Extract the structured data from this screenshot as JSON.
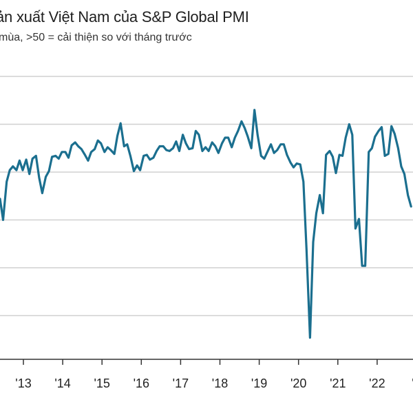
{
  "header": {
    "title": "ản xuất Việt Nam của S&P Global PMI",
    "subtitle": "mùa, >50 = cải thiện so với tháng trước"
  },
  "chart_data": {
    "type": "line",
    "title": "ản xuất Việt Nam của S&P Global PMI",
    "subtitle": "mùa, >50 = cải thiện so với tháng trước",
    "xlabel": "",
    "ylabel": "",
    "grid": true,
    "legend": "none",
    "line_color": "#1b6f8f",
    "grid_color": "#d0d0d0",
    "x_tick_labels": [
      "'13",
      "'14",
      "'15",
      "'16",
      "'17",
      "'18",
      "'19",
      "'20",
      "'21",
      "'22",
      "'2"
    ],
    "x_tick_years": [
      2013,
      2014,
      2015,
      2016,
      2017,
      2018,
      2019,
      2020,
      2021,
      2022,
      2023
    ],
    "xlim": [
      2012.45,
      2023.0
    ],
    "ylim": [
      30,
      60
    ],
    "y_gridlines": [
      35,
      40,
      45,
      50,
      55,
      60
    ],
    "series": [
      {
        "x": [
          2012.45,
          2012.53,
          2012.62,
          2012.7,
          2012.78,
          2012.87,
          2012.95,
          2013.03,
          2013.12,
          2013.2,
          2013.28,
          2013.37,
          2013.45,
          2013.53,
          2013.62,
          2013.7,
          2013.78,
          2013.87,
          2013.95,
          2014.03,
          2014.12,
          2014.2,
          2014.28,
          2014.37,
          2014.45,
          2014.53,
          2014.62,
          2014.7,
          2014.78,
          2014.87,
          2014.95,
          2015.03,
          2015.12,
          2015.2,
          2015.28,
          2015.37,
          2015.45,
          2015.53,
          2015.62,
          2015.7,
          2015.78,
          2015.87,
          2015.95,
          2016.03,
          2016.12,
          2016.2,
          2016.28,
          2016.37,
          2016.45,
          2016.53,
          2016.62,
          2016.7,
          2016.78,
          2016.87,
          2016.95,
          2017.03,
          2017.12,
          2017.2,
          2017.28,
          2017.37,
          2017.45,
          2017.53,
          2017.62,
          2017.7,
          2017.78,
          2017.87,
          2017.95,
          2018.03,
          2018.12,
          2018.2,
          2018.28,
          2018.37,
          2018.45,
          2018.53,
          2018.62,
          2018.7,
          2018.78,
          2018.87,
          2018.95,
          2019.03,
          2019.12,
          2019.2,
          2019.28,
          2019.37,
          2019.45,
          2019.53,
          2019.62,
          2019.7,
          2019.78,
          2019.87,
          2019.95,
          2020.03,
          2020.12,
          2020.2,
          2020.28,
          2020.37,
          2020.45,
          2020.53,
          2020.62,
          2020.7,
          2020.78,
          2020.87,
          2020.95,
          2021.03,
          2021.12,
          2021.2,
          2021.28,
          2021.37,
          2021.45,
          2021.53,
          2021.62,
          2021.7,
          2021.78,
          2021.87,
          2021.95,
          2022.03,
          2022.12,
          2022.2,
          2022.28,
          2022.37,
          2022.45,
          2022.53,
          2022.62,
          2022.7,
          2022.78,
          2022.87,
          2022.95
        ],
        "values": [
          47.2,
          45.0,
          49.0,
          50.2,
          50.6,
          50.2,
          51.2,
          50.2,
          51.3,
          49.8,
          51.4,
          51.7,
          49.4,
          47.8,
          49.5,
          50.1,
          51.6,
          51.7,
          51.4,
          52.1,
          52.1,
          51.5,
          52.8,
          53.1,
          52.7,
          52.4,
          51.8,
          51.2,
          52.1,
          52.4,
          53.3,
          53.0,
          52.1,
          52.6,
          52.3,
          51.9,
          53.8,
          55.1,
          52.7,
          52.9,
          51.7,
          50.1,
          50.7,
          50.2,
          51.7,
          51.8,
          51.3,
          51.5,
          52.2,
          52.7,
          52.7,
          52.3,
          52.2,
          52.5,
          53.2,
          52.2,
          53.9,
          53.0,
          52.4,
          52.5,
          54.3,
          53.9,
          52.2,
          52.6,
          52.2,
          53.1,
          52.7,
          52.0,
          53.0,
          53.6,
          53.6,
          52.6,
          53.6,
          54.3,
          55.3,
          54.6,
          53.7,
          52.5,
          56.5,
          53.9,
          51.7,
          51.4,
          52.1,
          52.9,
          52.0,
          52.3,
          52.9,
          52.9,
          51.8,
          51.0,
          50.5,
          50.9,
          50.8,
          49.0,
          41.9,
          32.7,
          42.7,
          45.7,
          47.6,
          45.7,
          51.8,
          52.2,
          51.6,
          49.9,
          51.8,
          51.7,
          53.6,
          55.0,
          53.9,
          44.1,
          45.1,
          40.2,
          40.2,
          52.1,
          52.5,
          53.7,
          54.3,
          54.7,
          51.7,
          51.9,
          54.8,
          54.0,
          52.5,
          50.6,
          49.8,
          47.6,
          46.4
        ]
      }
    ]
  }
}
